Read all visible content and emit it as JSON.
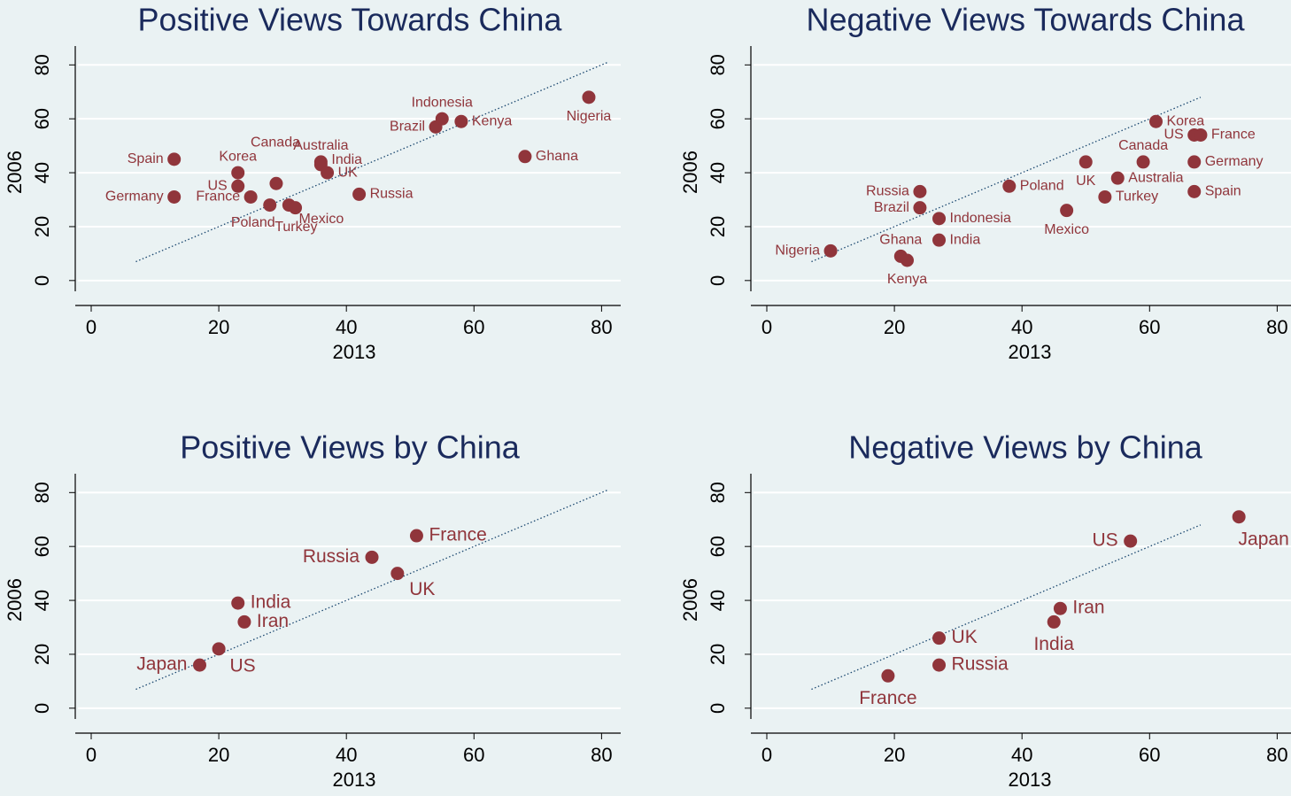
{
  "chart_data": [
    {
      "type": "scatter",
      "title": "Positive Views Towards China",
      "xlabel": "2013",
      "ylabel": "2006",
      "labels": [
        "Spain",
        "Germany",
        "Korea",
        "US",
        "France",
        "Canada",
        "Poland",
        "Turkey",
        "Mexico",
        "Australia",
        "India",
        "UK",
        "Russia",
        "Brazil",
        "Indonesia",
        "Kenya",
        "Ghana",
        "Nigeria"
      ],
      "x": [
        13,
        13,
        23,
        23,
        25,
        29,
        28,
        31,
        32,
        36,
        36,
        37,
        42,
        54,
        55,
        58,
        68,
        78
      ],
      "values": [
        45,
        31,
        40,
        35,
        31,
        36,
        28,
        28,
        27,
        44,
        43,
        40,
        32,
        57,
        60,
        59,
        46,
        68
      ],
      "color": "#90353b",
      "reference_line": {
        "x": [
          7,
          81
        ],
        "values": [
          7,
          81
        ]
      },
      "xlim": [
        -2.5,
        83
      ],
      "ylim": [
        -4,
        87
      ],
      "xticks": [
        0,
        20,
        40,
        60,
        80
      ],
      "yticks": [
        0,
        20,
        40,
        60,
        80
      ],
      "grid": true
    },
    {
      "type": "scatter",
      "title": "Negative Views Towards China",
      "xlabel": "2013",
      "ylabel": "2006",
      "labels": [
        "Nigeria",
        "Ghana",
        "Kenya",
        "Russia",
        "Brazil",
        "Indonesia",
        "India",
        "Poland",
        "Mexico",
        "UK",
        "Turkey",
        "Australia",
        "Canada",
        "Korea",
        "US",
        "France",
        "Germany",
        "Spain"
      ],
      "x": [
        10,
        21,
        22,
        24,
        24,
        27,
        27,
        38,
        47,
        50,
        53,
        55,
        59,
        61,
        67,
        68,
        67,
        67
      ],
      "values": [
        11,
        9,
        7.5,
        33,
        27,
        23,
        15,
        35,
        26,
        44,
        31,
        38,
        44,
        59,
        54,
        54,
        44,
        33
      ],
      "color": "#90353b",
      "reference_line": {
        "x": [
          7,
          68
        ],
        "values": [
          7,
          68
        ]
      },
      "xlim": [
        -2.5,
        83
      ],
      "ylim": [
        -4,
        87
      ],
      "xticks": [
        0,
        20,
        40,
        60,
        80
      ],
      "yticks": [
        0,
        20,
        40,
        60,
        80
      ],
      "grid": true
    },
    {
      "type": "scatter",
      "title": "Positive Views by China",
      "xlabel": "2013",
      "ylabel": "2006",
      "labels": [
        "Japan",
        "US",
        "India",
        "Iran",
        "Russia",
        "UK",
        "France"
      ],
      "x": [
        17,
        20,
        23,
        24,
        44,
        48,
        51
      ],
      "values": [
        16,
        22,
        39,
        32,
        56,
        50,
        64
      ],
      "color": "#90353b",
      "reference_line": {
        "x": [
          7,
          81
        ],
        "values": [
          7,
          81
        ]
      },
      "xlim": [
        -2.5,
        83
      ],
      "ylim": [
        -4,
        87
      ],
      "xticks": [
        0,
        20,
        40,
        60,
        80
      ],
      "yticks": [
        0,
        20,
        40,
        60,
        80
      ],
      "grid": true
    },
    {
      "type": "scatter",
      "title": "Negative Views by China",
      "xlabel": "2013",
      "ylabel": "2006",
      "labels": [
        "France",
        "UK",
        "Russia",
        "India",
        "Iran",
        "US",
        "Japan"
      ],
      "x": [
        19,
        27,
        27,
        45,
        46,
        57,
        74
      ],
      "values": [
        12,
        26,
        16,
        32,
        37,
        62,
        71
      ],
      "color": "#90353b",
      "reference_line": {
        "x": [
          7,
          68
        ],
        "values": [
          7,
          68
        ]
      },
      "xlim": [
        -2.5,
        83
      ],
      "ylim": [
        -4,
        87
      ],
      "xticks": [
        0,
        20,
        40,
        60,
        80
      ],
      "yticks": [
        0,
        20,
        40,
        60,
        80
      ],
      "grid": true
    }
  ]
}
